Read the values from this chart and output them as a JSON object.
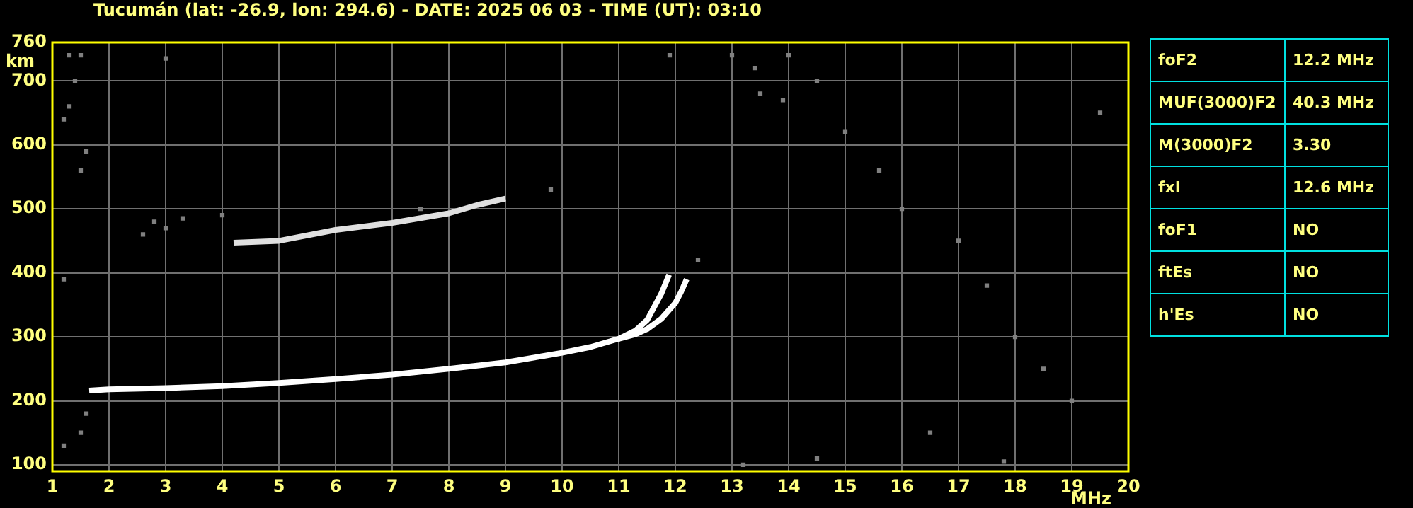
{
  "chart_data": [
    {
      "type": "scatter",
      "title": "Tucumán (lat: -26.9, lon: 294.6) - DATE: 2025 06 03 - TIME (UT): 03:10",
      "xlabel": "MHz",
      "ylabel": "km",
      "xlim": [
        1,
        20
      ],
      "xticks": [
        1,
        2,
        3,
        4,
        5,
        6,
        7,
        8,
        9,
        10,
        11,
        12,
        13,
        14,
        15,
        16,
        17,
        18,
        19,
        20
      ],
      "ylim": [
        90,
        760
      ],
      "yticks": [
        100,
        200,
        300,
        400,
        500,
        600,
        700,
        760
      ],
      "grid": true,
      "legend": false,
      "series": [
        {
          "type": "line",
          "color": "#ffffff",
          "marker": "none",
          "x": [
            1.65,
            2,
            3,
            4,
            5,
            6,
            7,
            8,
            9,
            10,
            10.5,
            11,
            11.3,
            11.5,
            11.75,
            11.89
          ],
          "values": [
            216,
            218,
            220,
            223,
            228,
            234,
            241,
            250,
            260,
            275,
            284,
            297,
            310,
            326,
            367,
            397
          ]
        },
        {
          "type": "line",
          "color": "#ffffff",
          "marker": "none",
          "x": [
            11,
            11.3,
            11.5,
            11.75,
            12,
            12.1,
            12.2
          ],
          "values": [
            297,
            304,
            312,
            328,
            353,
            370,
            390
          ]
        },
        {
          "type": "line",
          "color": "#e0e0e0",
          "marker": "none",
          "x": [
            4.2,
            5,
            6,
            7,
            8,
            8.5,
            9
          ],
          "values": [
            447,
            450,
            467,
            478,
            493,
            506,
            516
          ]
        },
        {
          "color": "#808080",
          "marker": "square",
          "x": [
            1.3,
            1.5,
            1.4,
            1.3,
            1.2,
            1.6,
            3.0,
            1.5,
            1.2,
            1.6,
            1.5,
            1.2,
            13.0,
            13.4,
            13.5,
            13.9,
            14.0,
            14.5,
            15.0,
            15.6,
            16.0,
            17.0,
            17.5,
            18.0,
            18.5,
            19.0,
            16.5,
            14.5,
            13.2,
            19.5,
            17.8,
            12.4,
            2.8,
            3.0,
            3.3,
            2.6,
            4.0,
            7.5,
            9.8,
            11.9
          ],
          "values": [
            740,
            740,
            700,
            660,
            640,
            590,
            735,
            560,
            390,
            180,
            150,
            130,
            740,
            720,
            680,
            670,
            740,
            700,
            620,
            560,
            500,
            450,
            380,
            300,
            250,
            200,
            150,
            110,
            100,
            650,
            105,
            420,
            480,
            470,
            485,
            460,
            490,
            500,
            530,
            740
          ]
        }
      ]
    },
    {
      "type": "other",
      "annotations": [
        "foF2",
        "12.2 MHz",
        "MUF(3000)F2",
        "40.3 MHz",
        "M(3000)F2",
        "3.30",
        "fxI",
        "12.6 MHz",
        "foF1",
        "NO",
        "ftEs",
        "NO",
        "h'Es",
        "NO"
      ]
    }
  ]
}
